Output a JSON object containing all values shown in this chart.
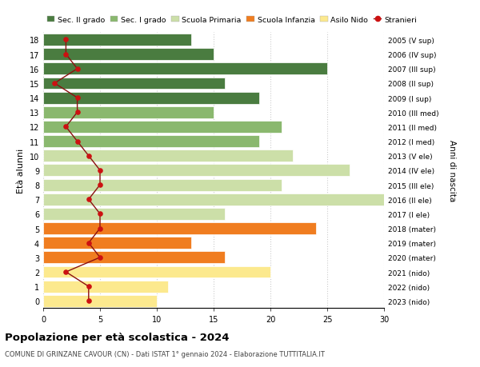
{
  "ages": [
    0,
    1,
    2,
    3,
    4,
    5,
    6,
    7,
    8,
    9,
    10,
    11,
    12,
    13,
    14,
    15,
    16,
    17,
    18
  ],
  "years": [
    "2023 (nido)",
    "2022 (nido)",
    "2021 (nido)",
    "2020 (mater)",
    "2019 (mater)",
    "2018 (mater)",
    "2017 (I ele)",
    "2016 (II ele)",
    "2015 (III ele)",
    "2014 (IV ele)",
    "2013 (V ele)",
    "2012 (I med)",
    "2011 (II med)",
    "2010 (III med)",
    "2009 (I sup)",
    "2008 (II sup)",
    "2007 (III sup)",
    "2006 (IV sup)",
    "2005 (V sup)"
  ],
  "bar_values": [
    10,
    11,
    20,
    16,
    13,
    24,
    16,
    30,
    21,
    27,
    22,
    19,
    21,
    15,
    19,
    16,
    25,
    15,
    13
  ],
  "bar_colors": [
    "#fce98e",
    "#fce98e",
    "#fce98e",
    "#f07d20",
    "#f07d20",
    "#f07d20",
    "#ccdfa8",
    "#ccdfa8",
    "#ccdfa8",
    "#ccdfa8",
    "#ccdfa8",
    "#8ab86e",
    "#8ab86e",
    "#8ab86e",
    "#4a7c40",
    "#4a7c40",
    "#4a7c40",
    "#4a7c40",
    "#4a7c40"
  ],
  "stranieri_values": [
    4,
    4,
    2,
    5,
    4,
    5,
    5,
    4,
    5,
    5,
    4,
    3,
    2,
    3,
    3,
    1,
    3,
    2,
    2
  ],
  "legend_labels": [
    "Sec. II grado",
    "Sec. I grado",
    "Scuola Primaria",
    "Scuola Infanzia",
    "Asilo Nido",
    "Stranieri"
  ],
  "legend_colors": [
    "#4a7c40",
    "#8ab86e",
    "#ccdfa8",
    "#f07d20",
    "#fce98e",
    "#cc1111"
  ],
  "ylabel": "Età alunni",
  "right_label": "Anni di nascita",
  "title": "Popolazione per età scolastica - 2024",
  "subtitle": "COMUNE DI GRINZANE CAVOUR (CN) - Dati ISTAT 1° gennaio 2024 - Elaborazione TUTTITALIA.IT",
  "xlim": [
    0,
    30
  ],
  "xticks": [
    0,
    5,
    10,
    15,
    20,
    25,
    30
  ],
  "background_color": "#ffffff",
  "grid_color": "#cccccc",
  "stranieri_line_color": "#8b1010",
  "stranieri_dot_color": "#cc1111"
}
